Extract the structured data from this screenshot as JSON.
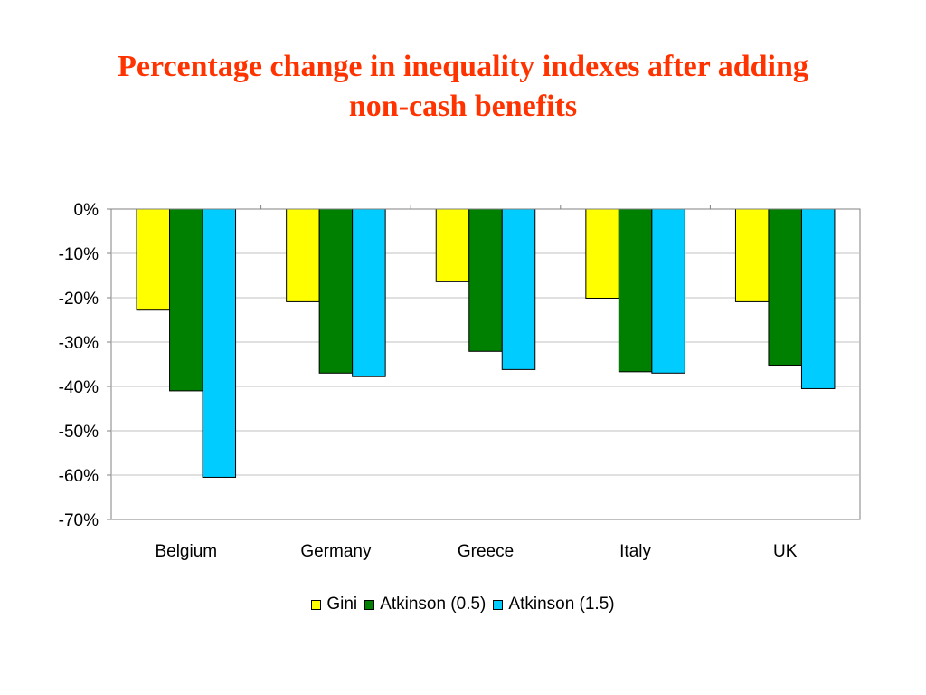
{
  "title": {
    "line1": "Percentage change in inequality indexes after adding",
    "line2": "non-cash benefits"
  },
  "colors": {
    "title": "#ff3300",
    "gini": "#ffff00",
    "atkinson_05": "#008000",
    "atkinson_15": "#00ccff",
    "gridline": "#c0c0c0",
    "axis": "#808080"
  },
  "chart_data": {
    "type": "bar",
    "categories": [
      "Belgium",
      "Germany",
      "Greece",
      "Italy",
      "UK"
    ],
    "series": [
      {
        "name": "Gini",
        "color": "#ffff00",
        "values": [
          -22.8,
          -20.9,
          -16.4,
          -20.1,
          -20.9
        ]
      },
      {
        "name": "Atkinson (0.5)",
        "color": "#008000",
        "values": [
          -41.0,
          -37.0,
          -32.1,
          -36.7,
          -35.2
        ]
      },
      {
        "name": "Atkinson (1.5)",
        "color": "#00ccff",
        "values": [
          -60.5,
          -37.8,
          -36.2,
          -37.0,
          -40.5
        ]
      }
    ],
    "yticks": [
      "0%",
      "-10%",
      "-20%",
      "-30%",
      "-40%",
      "-50%",
      "-60%",
      "-70%"
    ],
    "ylim": [
      -70,
      0
    ],
    "grid": true,
    "legend_position": "bottom"
  }
}
